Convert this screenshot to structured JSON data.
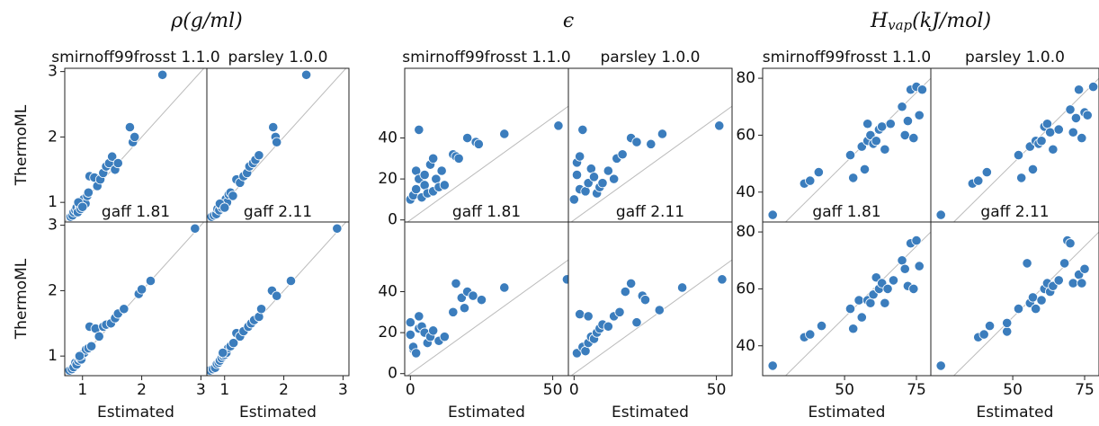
{
  "chart_data": [
    {
      "type": "scatter",
      "title": "ρ",
      "title_unit": "(g/ml)",
      "xlabel": "Estimated",
      "ylabel": "ThermoML",
      "color": "#3b7dbd",
      "xlim": [
        0.7,
        3.1
      ],
      "ylim": [
        0.7,
        3.05
      ],
      "xticks": [
        1,
        2,
        3
      ],
      "yticks": [
        1,
        2,
        3
      ],
      "panels": [
        {
          "title": "smirnoff99frosst 1.1.0",
          "x": [
            0.8,
            0.83,
            0.85,
            0.88,
            0.9,
            0.92,
            0.95,
            0.97,
            1.0,
            1.02,
            1.05,
            1.08,
            1.1,
            1.12,
            1.2,
            1.25,
            1.3,
            1.35,
            1.4,
            1.45,
            1.5,
            1.55,
            1.6,
            1.8,
            1.85,
            1.88,
            2.35,
            0.93,
            1.0
          ],
          "y": [
            0.78,
            0.8,
            0.85,
            0.88,
            0.92,
            0.85,
            0.95,
            0.9,
            1.0,
            1.05,
            0.98,
            1.1,
            1.15,
            1.4,
            1.38,
            1.25,
            1.35,
            1.45,
            1.55,
            1.6,
            1.7,
            1.5,
            1.6,
            2.15,
            1.92,
            2.0,
            2.95,
            1.0,
            0.93
          ]
        },
        {
          "title": "parsley 1.0.0",
          "x": [
            0.78,
            0.82,
            0.86,
            0.88,
            0.91,
            0.94,
            0.96,
            0.99,
            1.02,
            1.04,
            1.07,
            1.1,
            1.14,
            1.2,
            1.26,
            1.32,
            1.38,
            1.42,
            1.48,
            1.52,
            1.58,
            1.82,
            1.86,
            1.88,
            2.38,
            0.92,
            1.0
          ],
          "y": [
            0.78,
            0.8,
            0.82,
            0.9,
            0.88,
            0.95,
            0.92,
            1.0,
            1.05,
            1.0,
            1.12,
            1.15,
            1.1,
            1.35,
            1.3,
            1.4,
            1.45,
            1.55,
            1.6,
            1.65,
            1.72,
            2.15,
            2.0,
            1.92,
            2.95,
            0.98,
            0.92
          ]
        },
        {
          "title": "gaff 1.81",
          "x": [
            0.78,
            0.82,
            0.85,
            0.88,
            0.9,
            0.93,
            0.95,
            0.98,
            1.0,
            1.03,
            1.06,
            1.1,
            1.12,
            1.15,
            1.22,
            1.28,
            1.35,
            1.4,
            1.48,
            1.55,
            1.6,
            1.7,
            1.95,
            2.0,
            2.15,
            2.9,
            0.95
          ],
          "y": [
            0.78,
            0.8,
            0.83,
            0.9,
            0.87,
            0.93,
            0.97,
            0.95,
            1.02,
            1.05,
            1.1,
            1.12,
            1.45,
            1.15,
            1.42,
            1.3,
            1.45,
            1.48,
            1.5,
            1.58,
            1.65,
            1.72,
            1.95,
            2.02,
            2.15,
            2.95,
            1.0
          ]
        },
        {
          "title": "gaff 2.11",
          "x": [
            0.75,
            0.8,
            0.84,
            0.87,
            0.9,
            0.92,
            0.95,
            0.98,
            1.0,
            1.03,
            1.06,
            1.1,
            1.15,
            1.2,
            1.26,
            1.32,
            1.4,
            1.45,
            1.5,
            1.58,
            1.62,
            1.8,
            1.88,
            2.12,
            2.9,
            0.97
          ],
          "y": [
            0.78,
            0.8,
            0.82,
            0.88,
            0.9,
            0.93,
            0.97,
            1.0,
            1.02,
            1.05,
            1.12,
            1.15,
            1.2,
            1.35,
            1.3,
            1.38,
            1.45,
            1.5,
            1.55,
            1.6,
            1.72,
            2.0,
            1.92,
            2.15,
            2.95,
            1.05
          ]
        }
      ]
    },
    {
      "type": "scatter",
      "title": "ϵ",
      "xlabel": "Estimated",
      "color": "#3b7dbd",
      "xlim": [
        -2,
        55.5
      ],
      "ylim": [
        -1,
        74
      ],
      "xticks": [
        0,
        50
      ],
      "yticks": [
        0,
        20,
        40
      ],
      "panels": [
        {
          "title": "smirnoff99frosst 1.1.0",
          "x": [
            0,
            1,
            2,
            2,
            3,
            3,
            4,
            5,
            5,
            6,
            7,
            8,
            8,
            9,
            10,
            11,
            12,
            15,
            16,
            17,
            20,
            23,
            24,
            33,
            52
          ],
          "y": [
            10,
            12,
            24,
            15,
            44,
            20,
            11,
            22,
            17,
            13,
            27,
            30,
            14,
            20,
            16,
            24,
            17,
            32,
            31,
            30,
            40,
            38,
            37,
            42,
            46
          ]
        },
        {
          "title": "parsley 1.0.0",
          "x": [
            0,
            1,
            1,
            2,
            2,
            3,
            4,
            5,
            6,
            7,
            8,
            9,
            10,
            12,
            14,
            15,
            17,
            20,
            22,
            27,
            31,
            51
          ],
          "y": [
            10,
            22,
            28,
            31,
            15,
            44,
            14,
            18,
            25,
            21,
            13,
            16,
            18,
            24,
            20,
            30,
            32,
            40,
            38,
            37,
            42,
            46
          ]
        },
        {
          "title": "gaff 1.81",
          "x": [
            0,
            0,
            1,
            1,
            2,
            3,
            3,
            4,
            5,
            6,
            7,
            8,
            10,
            12,
            15,
            16,
            18,
            19,
            20,
            22,
            25,
            33,
            55
          ],
          "y": [
            19,
            25,
            12,
            13,
            10,
            28,
            22,
            23,
            20,
            15,
            18,
            21,
            16,
            18,
            30,
            44,
            37,
            32,
            40,
            38,
            36,
            42,
            46
          ]
        },
        {
          "title": "gaff 2.11",
          "x": [
            1,
            2,
            3,
            4,
            5,
            5,
            6,
            7,
            8,
            9,
            10,
            12,
            14,
            16,
            18,
            20,
            22,
            24,
            25,
            30,
            38,
            52
          ],
          "y": [
            10,
            29,
            13,
            11,
            15,
            28,
            18,
            17,
            20,
            22,
            24,
            23,
            28,
            30,
            40,
            44,
            25,
            38,
            36,
            31,
            42,
            46
          ]
        }
      ]
    },
    {
      "type": "scatter",
      "title": "H",
      "title_sub": "vap",
      "title_unit": "(kJ/mol)",
      "xlabel": "Estimated",
      "color": "#3b7dbd",
      "xlim": [
        21.5,
        80
      ],
      "ylim": [
        29.5,
        83.5
      ],
      "xticks": [
        50,
        75
      ],
      "yticks": [
        40,
        60,
        80
      ],
      "panels": [
        {
          "title": "smirnoff99frosst 1.1.0",
          "x": [
            25,
            36,
            38,
            41,
            52,
            53,
            56,
            57,
            58,
            58,
            59,
            60,
            61,
            62,
            63,
            64,
            66,
            70,
            71,
            72,
            73,
            74,
            75,
            76,
            77
          ],
          "y": [
            32,
            43,
            44,
            47,
            53,
            45,
            56,
            48,
            58,
            64,
            60,
            57,
            58,
            62,
            63,
            55,
            64,
            70,
            60,
            65,
            76,
            59,
            77,
            67,
            76
          ]
        },
        {
          "title": "parsley 1.0.0",
          "x": [
            25,
            36,
            38,
            41,
            52,
            53,
            56,
            57,
            58,
            59,
            60,
            61,
            62,
            63,
            64,
            66,
            70,
            71,
            72,
            73,
            74,
            75,
            76,
            78
          ],
          "y": [
            32,
            43,
            44,
            47,
            53,
            45,
            56,
            48,
            58,
            57,
            58,
            63,
            64,
            61,
            55,
            62,
            69,
            61,
            66,
            76,
            59,
            68,
            67,
            77
          ]
        },
        {
          "title": "gaff 1.81",
          "x": [
            25,
            36,
            38,
            42,
            52,
            53,
            55,
            56,
            58,
            59,
            60,
            61,
            62,
            63,
            64,
            65,
            67,
            70,
            71,
            72,
            73,
            74,
            75,
            76
          ],
          "y": [
            33,
            43,
            44,
            47,
            53,
            46,
            56,
            50,
            56,
            55,
            58,
            64,
            60,
            62,
            55,
            60,
            63,
            70,
            67,
            61,
            76,
            60,
            77,
            68
          ]
        },
        {
          "title": "gaff 2.11",
          "x": [
            25,
            38,
            40,
            42,
            48,
            48,
            52,
            55,
            56,
            57,
            58,
            60,
            61,
            62,
            63,
            64,
            66,
            68,
            69,
            70,
            71,
            73,
            74,
            75
          ],
          "y": [
            33,
            43,
            44,
            47,
            45,
            48,
            53,
            69,
            55,
            57,
            53,
            56,
            60,
            62,
            59,
            61,
            63,
            69,
            77,
            76,
            62,
            65,
            62,
            67
          ]
        }
      ]
    }
  ]
}
